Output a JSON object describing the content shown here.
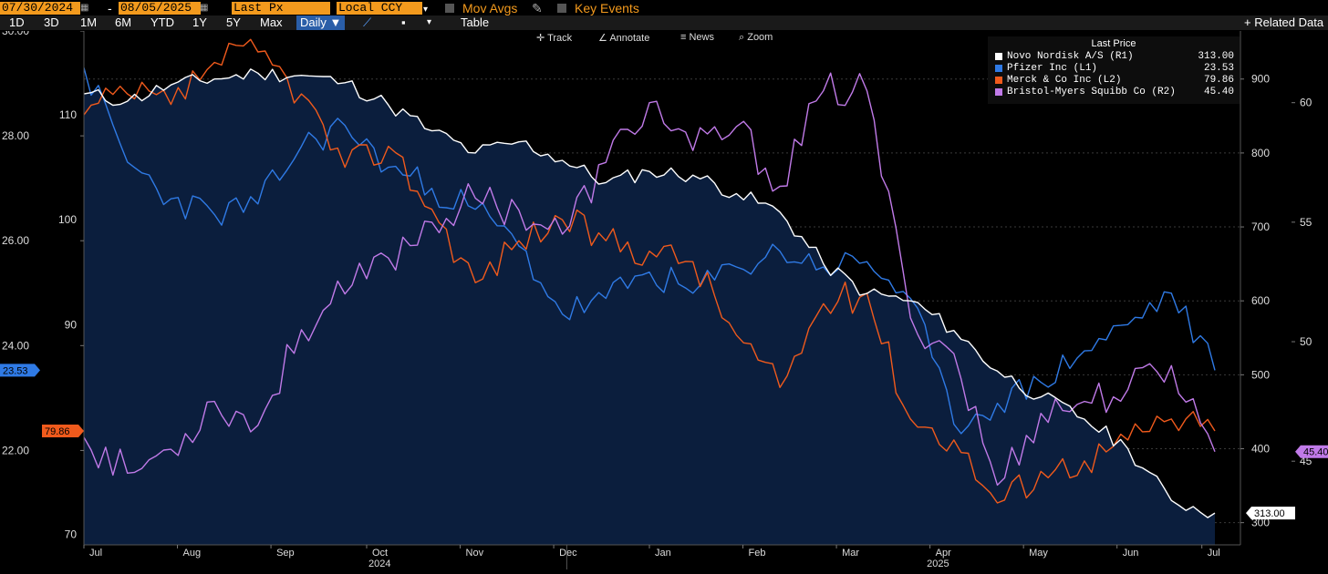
{
  "toolbar": {
    "start_date": "07/30/2024",
    "date_sep": "-",
    "end_date": "08/05/2025",
    "field": "Last Px",
    "currency": "Local CCY",
    "mov_avgs": "Mov Avgs",
    "key_events": "Key Events",
    "ranges": [
      "1D",
      "3D",
      "1M",
      "6M",
      "YTD",
      "1Y",
      "5Y",
      "Max"
    ],
    "frequency": "Daily",
    "table_label": "Table",
    "related_data": "+ Related Data"
  },
  "chart_tools": {
    "track": "Track",
    "annotate": "Annotate",
    "news": "News",
    "zoom": "Zoom"
  },
  "legend": {
    "title": "Last Price",
    "items": [
      {
        "name": "Novo Nordisk A/S  (R1)",
        "value": "313.00",
        "color": "#ffffff"
      },
      {
        "name": "Pfizer Inc  (L1)",
        "value": "23.53",
        "color": "#2f7ae5"
      },
      {
        "name": "Merck & Co Inc  (L2)",
        "value": "79.86",
        "color": "#f05a1c"
      },
      {
        "name": "Bristol-Myers Squibb Co  (R2)",
        "value": "45.40",
        "color": "#c07ae8"
      }
    ]
  },
  "chart_data": {
    "type": "line",
    "title": "Last Price",
    "x_range": [
      "07/30/2024",
      "08/05/2025"
    ],
    "x_tick_labels": [
      "Jul",
      "Aug",
      "Sep",
      "Oct",
      "Nov",
      "Dec",
      "Jan",
      "Feb",
      "Mar",
      "Apr",
      "May",
      "Jun",
      "Jul"
    ],
    "x_year_labels": [
      "2024",
      "2025"
    ],
    "axes": {
      "L1": {
        "ticks": [
          "30.00",
          "28.00",
          "26.00",
          "24.00",
          "22.00"
        ],
        "range": [
          20.2,
          30.0
        ],
        "last_marker": "23.53"
      },
      "L2": {
        "ticks": [
          "110",
          "100",
          "90",
          "70"
        ],
        "range": [
          69,
          118
        ],
        "last_marker": "79.86"
      },
      "R1": {
        "ticks": [
          "900",
          "800",
          "700",
          "600",
          "500",
          "400",
          "300"
        ],
        "range": [
          270,
          965
        ],
        "last_marker": "313.00"
      },
      "R2": {
        "ticks": [
          "60",
          "55",
          "50",
          "45"
        ],
        "range": [
          41.5,
          63
        ],
        "last_marker": "45.40"
      }
    },
    "series": [
      {
        "name": "Novo Nordisk A/S",
        "axis": "R1",
        "color": "#ffffff",
        "x": [
          0,
          2,
          4,
          6,
          8,
          10,
          12,
          14,
          16,
          18,
          20,
          22,
          24,
          26,
          28,
          30,
          32,
          34,
          36,
          38,
          40,
          42,
          44,
          46,
          48,
          50,
          52
        ],
        "values": [
          880,
          870,
          892,
          900,
          908,
          905,
          895,
          865,
          830,
          800,
          815,
          790,
          760,
          775,
          770,
          745,
          720,
          650,
          610,
          600,
          560,
          505,
          470,
          440,
          400,
          330,
          313
        ]
      },
      {
        "name": "Pfizer Inc",
        "axis": "L1",
        "color": "#2f7ae5",
        "x": [
          0,
          2,
          4,
          6,
          8,
          10,
          12,
          14,
          16,
          18,
          20,
          22,
          24,
          26,
          28,
          30,
          32,
          34,
          36,
          38,
          40,
          42,
          44,
          46,
          48,
          50,
          52
        ],
        "values": [
          29.3,
          27.5,
          26.8,
          26.5,
          26.7,
          27.8,
          28.2,
          27.4,
          27.0,
          26.6,
          25.9,
          24.6,
          24.9,
          25.4,
          25.0,
          25.5,
          25.8,
          25.5,
          25.6,
          24.9,
          22.5,
          22.9,
          23.3,
          23.9,
          24.4,
          25.0,
          23.53
        ]
      },
      {
        "name": "Merck & Co Inc",
        "axis": "L2",
        "color": "#f05a1c",
        "x": [
          0,
          2,
          4,
          6,
          8,
          10,
          12,
          14,
          16,
          18,
          20,
          22,
          24,
          26,
          28,
          30,
          32,
          34,
          36,
          38,
          40,
          42,
          44,
          46,
          48,
          50,
          52
        ],
        "values": [
          110,
          112,
          111,
          115,
          116,
          112,
          105,
          107,
          101,
          94,
          98,
          100,
          98,
          97,
          96,
          89,
          84,
          92,
          93,
          81,
          79,
          73,
          76,
          77,
          79,
          81,
          79.86
        ]
      },
      {
        "name": "Bristol-Myers Squibb Co",
        "axis": "R2",
        "color": "#c07ae8",
        "x": [
          0,
          2,
          4,
          6,
          8,
          10,
          12,
          14,
          16,
          18,
          20,
          22,
          24,
          26,
          28,
          30,
          32,
          34,
          36,
          38,
          40,
          42,
          44,
          46,
          48,
          50,
          52
        ],
        "values": [
          46.0,
          44.5,
          45.5,
          47.5,
          46.5,
          50.5,
          52.0,
          53.5,
          55.0,
          56.0,
          55.5,
          54.5,
          57.5,
          60.0,
          58.0,
          59.0,
          56.5,
          60.5,
          60.5,
          51.0,
          49.5,
          44.0,
          47.0,
          47.5,
          48.0,
          49.0,
          45.4
        ]
      }
    ]
  }
}
